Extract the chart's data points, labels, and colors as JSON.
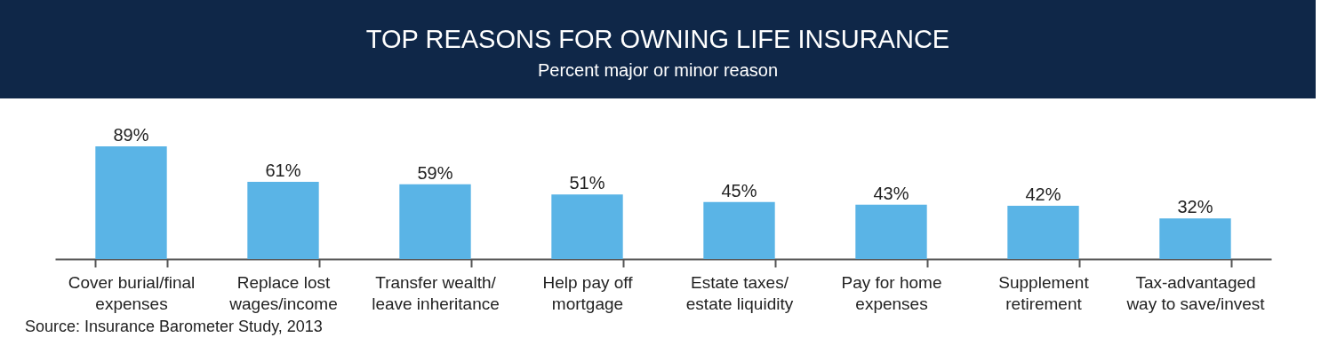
{
  "chart_data": {
    "type": "bar",
    "title": "TOP REASONS FOR OWNING LIFE INSURANCE",
    "subtitle": "Percent major or minor reason",
    "categories": [
      "Cover burial/final\nexpenses",
      "Replace lost\nwages/income",
      "Transfer wealth/\nleave inheritance",
      "Help pay off\nmortgage",
      "Estate taxes/\nestate liquidity",
      "Pay for home\nexpenses",
      "Supplement\nretirement",
      "Tax-advantaged\nway to save/invest"
    ],
    "values": [
      89,
      61,
      59,
      51,
      45,
      43,
      42,
      32
    ],
    "value_labels": [
      "89%",
      "61%",
      "59%",
      "51%",
      "45%",
      "43%",
      "42%",
      "32%"
    ],
    "color": "#5ab4e6",
    "annotations": [
      "Source: Insurance Barometer Study, 2013"
    ]
  }
}
